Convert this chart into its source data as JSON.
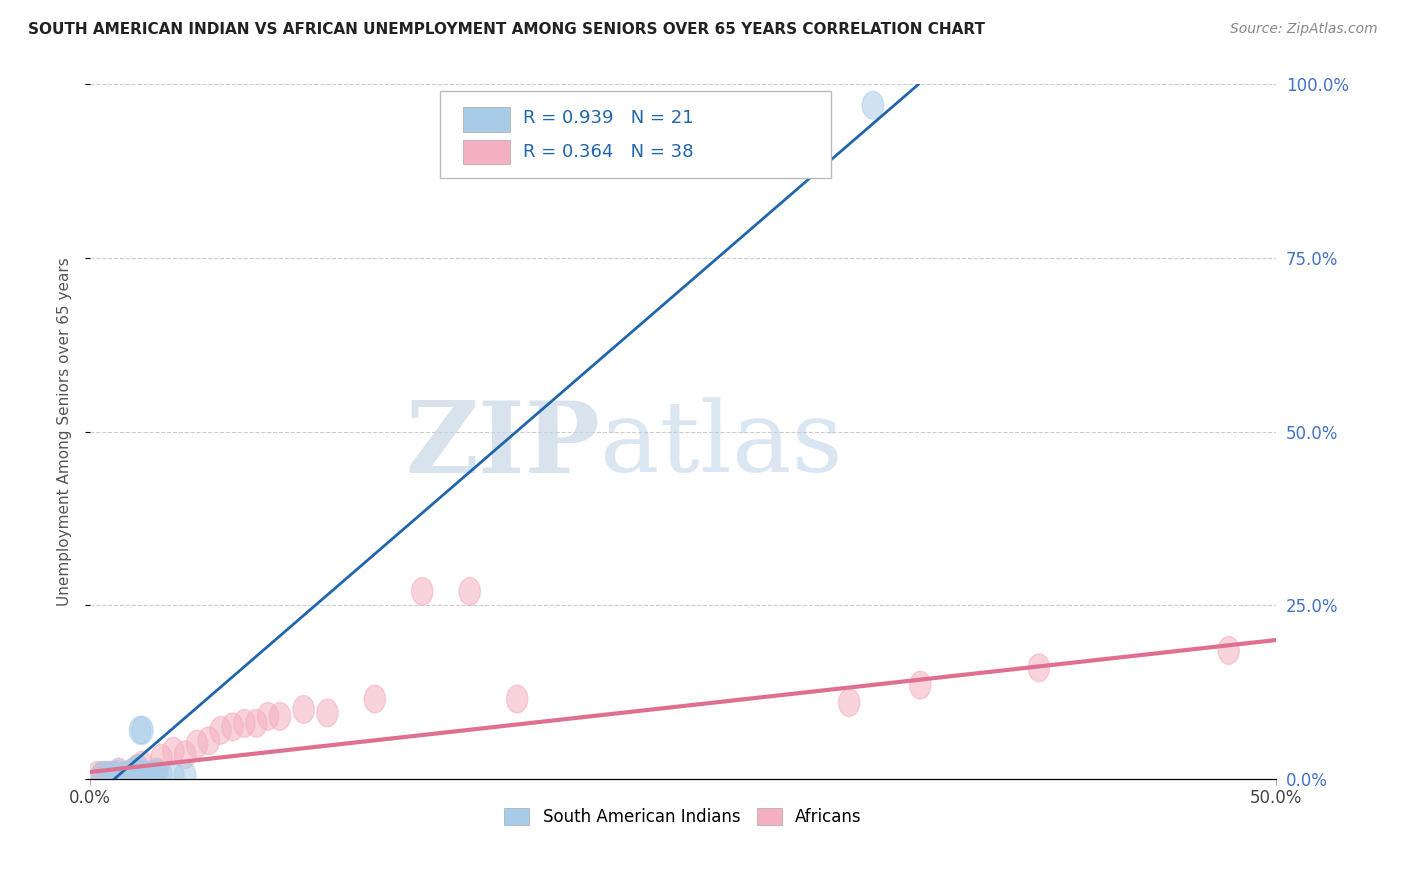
{
  "title": "SOUTH AMERICAN INDIAN VS AFRICAN UNEMPLOYMENT AMONG SENIORS OVER 65 YEARS CORRELATION CHART",
  "source": "Source: ZipAtlas.com",
  "ylabel_label": "Unemployment Among Seniors over 65 years",
  "xlim": [
    0.0,
    0.5
  ],
  "ylim": [
    0.0,
    1.0
  ],
  "watermark_zip": "ZIP",
  "watermark_atlas": "atlas",
  "legend_r1": "R = 0.939",
  "legend_n1": "N = 21",
  "legend_r2": "R = 0.364",
  "legend_n2": "N = 38",
  "blue_color": "#a8cce8",
  "pink_color": "#f4afc0",
  "blue_line_color": "#2166ac",
  "pink_line_color": "#e07090",
  "blue_line_slope": 2.95,
  "blue_line_intercept": -0.03,
  "pink_line_slope": 0.38,
  "pink_line_intercept": 0.01,
  "south_american_x": [
    0.005,
    0.008,
    0.01,
    0.012,
    0.015,
    0.016,
    0.017,
    0.018,
    0.019,
    0.02,
    0.02,
    0.021,
    0.022,
    0.025,
    0.025,
    0.027,
    0.028,
    0.03,
    0.035,
    0.04,
    0.33
  ],
  "south_american_y": [
    0.005,
    0.005,
    0.005,
    0.007,
    0.005,
    0.005,
    0.005,
    0.005,
    0.01,
    0.01,
    0.015,
    0.07,
    0.07,
    0.005,
    0.005,
    0.005,
    0.008,
    0.005,
    0.005,
    0.005,
    0.97
  ],
  "african_x": [
    0.003,
    0.005,
    0.006,
    0.007,
    0.008,
    0.009,
    0.01,
    0.012,
    0.015,
    0.016,
    0.017,
    0.018,
    0.019,
    0.02,
    0.022,
    0.025,
    0.028,
    0.03,
    0.035,
    0.04,
    0.045,
    0.05,
    0.055,
    0.06,
    0.065,
    0.07,
    0.075,
    0.08,
    0.09,
    0.1,
    0.12,
    0.14,
    0.16,
    0.18,
    0.32,
    0.35,
    0.4,
    0.48
  ],
  "african_y": [
    0.005,
    0.005,
    0.005,
    0.005,
    0.005,
    0.005,
    0.005,
    0.01,
    0.005,
    0.005,
    0.005,
    0.01,
    0.012,
    0.015,
    0.02,
    0.005,
    0.01,
    0.03,
    0.04,
    0.035,
    0.05,
    0.055,
    0.07,
    0.075,
    0.08,
    0.08,
    0.09,
    0.09,
    0.1,
    0.095,
    0.115,
    0.27,
    0.27,
    0.115,
    0.11,
    0.135,
    0.16,
    0.185
  ],
  "legend_labels": [
    "South American Indians",
    "Africans"
  ],
  "background_color": "#ffffff",
  "grid_color": "#cccccc",
  "x_tick_labels": [
    "0.0%",
    "50.0%"
  ],
  "y_tick_labels": [
    "0.0%",
    "25.0%",
    "50.0%",
    "75.0%",
    "100.0%"
  ],
  "y_tick_positions": [
    0.0,
    0.25,
    0.5,
    0.75,
    1.0
  ]
}
